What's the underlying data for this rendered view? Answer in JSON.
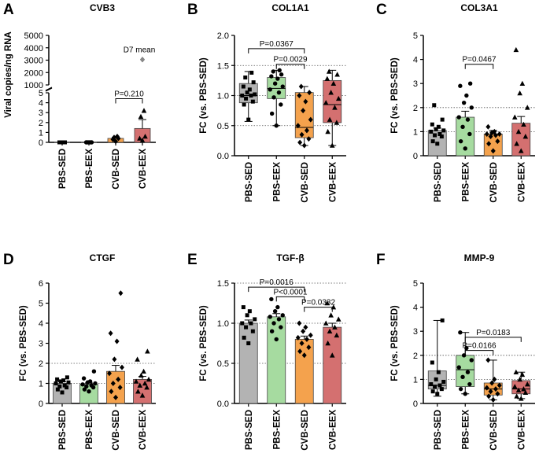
{
  "figure": {
    "category_labels": [
      "PBS-SED",
      "PBS-EEX",
      "CVB-SED",
      "CVB-EEX"
    ],
    "colors": {
      "PBS-SED": "#b3b3b3",
      "PBS-EEX": "#a6dba0",
      "CVB-SED": "#f4a24d",
      "CVB-EEX": "#d47070"
    }
  },
  "chart_data": [
    {
      "panel": "A",
      "title": "CVB3",
      "type": "bar",
      "ylabel": "Viral copies/ng RNA",
      "categories": [
        "PBS-SED",
        "PBS-EEX",
        "CVB-SED",
        "CVB-EEX"
      ],
      "ylim_lower": [
        0,
        5
      ],
      "ylim_upper": [
        1000,
        5000
      ],
      "yticks_lower": [
        "0",
        "1",
        "2",
        "3",
        "4",
        "5"
      ],
      "yticks_upper": [
        "1000",
        "2000",
        "3000",
        "4000",
        "5000"
      ],
      "values": [
        0,
        0,
        0.4,
        1.4
      ],
      "errors": [
        0,
        0,
        0.1,
        0.9
      ],
      "points": [
        [
          0,
          0,
          0,
          0,
          0
        ],
        [
          0,
          0,
          0,
          0,
          0
        ],
        [
          0.1,
          0.3,
          0.4,
          0.5,
          0.6
        ],
        [
          0.2,
          0.4,
          0.6,
          2.6,
          3.2
        ]
      ],
      "annotations": [
        {
          "text": "D7 mean",
          "value": 3050,
          "category": "CVB-EEX"
        }
      ],
      "significance": [
        {
          "a": "CVB-SED",
          "b": "CVB-EEX",
          "label": "P=0.210",
          "level": 4.4
        }
      ]
    },
    {
      "panel": "B",
      "title": "COL1A1",
      "type": "box",
      "ylabel": "FC (vs. PBS-SED)",
      "categories": [
        "PBS-SED",
        "PBS-EEX",
        "CVB-SED",
        "CVB-EEX"
      ],
      "ylim": [
        0,
        2
      ],
      "yticks": [
        "0.0",
        "0.5",
        "1.0",
        "1.5",
        "2.0"
      ],
      "boxes": [
        {
          "min": 0.57,
          "q1": 0.88,
          "median": 1.0,
          "q3": 1.2,
          "max": 1.4
        },
        {
          "min": 0.5,
          "q1": 0.95,
          "median": 1.12,
          "q3": 1.3,
          "max": 1.42
        },
        {
          "min": 0.17,
          "q1": 0.3,
          "median": 0.47,
          "q3": 1.05,
          "max": 1.15
        },
        {
          "min": 0.17,
          "q1": 0.55,
          "median": 0.85,
          "q3": 1.25,
          "max": 1.42
        }
      ],
      "points": [
        [
          0.6,
          0.85,
          0.9,
          0.95,
          1.0,
          1.0,
          1.02,
          1.05,
          1.1,
          1.15,
          1.22,
          1.3,
          1.38
        ],
        [
          0.5,
          0.7,
          0.85,
          0.97,
          1.05,
          1.1,
          1.15,
          1.2,
          1.28,
          1.32,
          1.35,
          1.4,
          1.42
        ],
        [
          0.17,
          0.22,
          0.28,
          0.35,
          0.42,
          0.5,
          0.6,
          0.75,
          0.9,
          1.0,
          1.05,
          1.15
        ],
        [
          0.17,
          0.4,
          0.55,
          0.6,
          0.8,
          0.88,
          0.95,
          1.05,
          1.2,
          1.28,
          1.35,
          1.4
        ]
      ],
      "significance": [
        {
          "a": "PBS-SED",
          "b": "CVB-SED",
          "label": "P=0.0367",
          "level": 1.78
        },
        {
          "a": "PBS-EEX",
          "b": "CVB-SED",
          "label": "P=0.0029",
          "level": 1.52
        }
      ]
    },
    {
      "panel": "C",
      "title": "COL3A1",
      "type": "bar",
      "ylabel": "FC (vs. PBS-SED)",
      "categories": [
        "PBS-SED",
        "PBS-EEX",
        "CVB-SED",
        "CVB-EEX"
      ],
      "ylim": [
        0,
        5
      ],
      "yticks": [
        "0",
        "1",
        "2",
        "3",
        "4",
        "5"
      ],
      "values": [
        1.05,
        1.6,
        0.9,
        1.35
      ],
      "errors": [
        0.1,
        0.25,
        0.15,
        0.28
      ],
      "points": [
        [
          0.5,
          0.6,
          0.8,
          0.85,
          0.9,
          1.0,
          1.05,
          1.1,
          1.2,
          1.3,
          1.5,
          2.1
        ],
        [
          0.3,
          0.6,
          0.9,
          1.2,
          1.5,
          1.6,
          2.0,
          2.2,
          2.5,
          2.9,
          3.0
        ],
        [
          0.2,
          0.5,
          0.6,
          0.8,
          0.85,
          0.9,
          0.9,
          0.95,
          1.0,
          1.2
        ],
        [
          0.2,
          0.5,
          0.8,
          1.0,
          1.3,
          1.6,
          2.0,
          2.6,
          3.0,
          4.4
        ]
      ],
      "significance": [
        {
          "a": "PBS-EEX",
          "b": "CVB-SED",
          "label": "P=0.0467",
          "level": 3.8
        }
      ]
    },
    {
      "panel": "D",
      "title": "CTGF",
      "type": "bar",
      "ylabel": "FC (vs. PBS-SED)",
      "categories": [
        "PBS-SED",
        "PBS-EEX",
        "CVB-SED",
        "CVB-EEX"
      ],
      "ylim": [
        0,
        6
      ],
      "yticks": [
        "0",
        "1",
        "2",
        "3",
        "4",
        "5",
        "6"
      ],
      "values": [
        1.0,
        0.95,
        1.6,
        1.2
      ],
      "errors": [
        0.08,
        0.07,
        0.3,
        0.15
      ],
      "points": [
        [
          0.55,
          0.7,
          0.8,
          0.85,
          0.9,
          1.0,
          1.05,
          1.1,
          1.15,
          1.2,
          1.3
        ],
        [
          0.6,
          0.7,
          0.8,
          0.85,
          0.9,
          0.95,
          1.0,
          1.05,
          1.1,
          1.25,
          1.6
        ],
        [
          0.3,
          0.6,
          0.8,
          1.0,
          1.2,
          1.5,
          1.8,
          2.2,
          3.1,
          3.5,
          5.5
        ],
        [
          0.4,
          0.6,
          0.8,
          0.9,
          1.0,
          1.1,
          1.2,
          1.4,
          1.6,
          2.2,
          2.6
        ]
      ]
    },
    {
      "panel": "E",
      "title": "TGF-β",
      "type": "bar",
      "ylabel": "FC (vs. PBS-SED)",
      "categories": [
        "PBS-SED",
        "PBS-EEX",
        "CVB-SED",
        "CVB-EEX"
      ],
      "ylim": [
        0,
        1.5
      ],
      "yticks": [
        "0.0",
        "0.5",
        "1.0",
        "1.5"
      ],
      "values": [
        1.0,
        1.08,
        0.8,
        0.95
      ],
      "errors": [
        0.04,
        0.04,
        0.04,
        0.05
      ],
      "points": [
        [
          0.75,
          0.82,
          0.9,
          0.95,
          1.0,
          1.0,
          1.05,
          1.1,
          1.15,
          1.2
        ],
        [
          0.8,
          0.9,
          0.95,
          1.0,
          1.05,
          1.08,
          1.1,
          1.15,
          1.2,
          1.3
        ],
        [
          0.6,
          0.65,
          0.7,
          0.75,
          0.8,
          0.82,
          0.85,
          0.9,
          0.95,
          1.0
        ],
        [
          0.6,
          0.75,
          0.85,
          0.9,
          0.95,
          1.0,
          1.05,
          1.1,
          1.2,
          1.25
        ]
      ],
      "significance": [
        {
          "a": "PBS-SED",
          "b": "CVB-SED",
          "label": "P=0.0016",
          "level": 1.45
        },
        {
          "a": "PBS-EEX",
          "b": "CVB-SED",
          "label": "P<0.0001",
          "level": 1.33
        },
        {
          "a": "CVB-SED",
          "b": "CVB-EEX",
          "label": "P=0.0332",
          "level": 1.2
        }
      ]
    },
    {
      "panel": "F",
      "title": "MMP-9",
      "type": "box",
      "ylabel": "FC (vs. PBS-SED)",
      "categories": [
        "PBS-SED",
        "PBS-EEX",
        "CVB-SED",
        "CVB-EEX"
      ],
      "ylim": [
        0,
        5
      ],
      "yticks": [
        "0",
        "1",
        "2",
        "3",
        "4",
        "5"
      ],
      "boxes": [
        {
          "min": 0.3,
          "q1": 0.6,
          "median": 0.75,
          "q3": 1.35,
          "max": 3.45
        },
        {
          "min": 0.4,
          "q1": 0.7,
          "median": 1.4,
          "q3": 2.0,
          "max": 2.95
        },
        {
          "min": 0.15,
          "q1": 0.35,
          "median": 0.6,
          "q3": 0.85,
          "max": 1.8
        },
        {
          "min": 0.2,
          "q1": 0.4,
          "median": 0.6,
          "q3": 0.95,
          "max": 1.3
        }
      ],
      "points": [
        [
          0.4,
          0.5,
          0.6,
          0.7,
          0.75,
          0.8,
          0.9,
          1.0,
          1.3,
          1.7,
          3.45
        ],
        [
          0.4,
          0.6,
          0.8,
          1.1,
          1.3,
          1.5,
          1.8,
          2.0,
          2.3,
          2.95
        ],
        [
          0.15,
          0.3,
          0.4,
          0.5,
          0.6,
          0.65,
          0.75,
          0.85,
          1.0,
          1.8
        ],
        [
          0.2,
          0.3,
          0.45,
          0.55,
          0.6,
          0.7,
          0.8,
          1.0,
          1.2,
          1.3
        ]
      ],
      "significance": [
        {
          "a": "PBS-EEX",
          "b": "CVB-SED",
          "label": "P=0.0166",
          "level": 2.2
        },
        {
          "a": "PBS-EEX",
          "b": "CVB-EEX",
          "label": "P=0.0183",
          "level": 2.75
        }
      ]
    }
  ]
}
